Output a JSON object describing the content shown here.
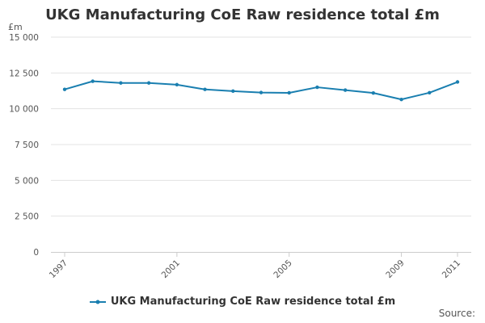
{
  "page": {
    "source_label": "Source:"
  },
  "chart_data": {
    "type": "line",
    "title": "UKG Manufacturing CoE Raw residence total £m",
    "ylabel": "£m",
    "xlabel": "",
    "ylim": [
      0,
      15000
    ],
    "y_ticks": [
      0,
      2500,
      5000,
      7500,
      10000,
      12500,
      15000
    ],
    "y_tick_labels": [
      "0",
      "2 500",
      "5 000",
      "7 500",
      "10 000",
      "12 500",
      "15 000"
    ],
    "x": [
      1997,
      1998,
      1999,
      2000,
      2001,
      2002,
      2003,
      2004,
      2005,
      2006,
      2007,
      2008,
      2009,
      2010,
      2011
    ],
    "x_tick_labels": [
      "1997",
      "2001",
      "2005",
      "2009",
      "2011"
    ],
    "grid": true,
    "legend_position": "bottom",
    "series": [
      {
        "name": "UKG Manufacturing CoE Raw residence total £m",
        "color": "#1a7fb0",
        "values": [
          11350,
          11920,
          11800,
          11800,
          11680,
          11350,
          11230,
          11130,
          11110,
          11500,
          11300,
          11100,
          10650,
          11120,
          11870
        ]
      }
    ]
  }
}
